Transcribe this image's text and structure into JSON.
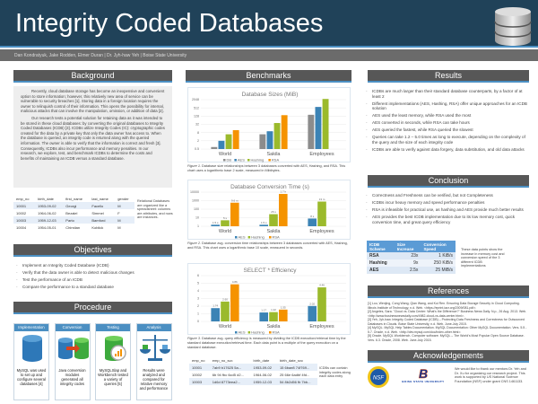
{
  "header": {
    "title": "Integrity Coded Databases",
    "authors": "Dan Kondratyuk, Jake Rodden, Elmer Duran  |  Dr. Jyh-haw Yeh | Boise State University"
  },
  "background": {
    "heading": "Background",
    "p1": "Recently, cloud database storage has become an inexpensive and convenient option to store information; however, this relatively new area of service can be vulnerable to security breaches [1]. Storing data in a foreign location requires the owner to relinquish control of their information. This opens the possibility for internal, malicious attacks that can involve the manipulation, omission, or addition of data [2].",
    "p2": "Our research tests a potential solution for retaining data as it was intended to be stored in these cloud databases: by converting the original databases to Integrity Coded Databases (ICDB) [3]. ICDBs utilize Integrity Codes (IC): cryptographic codes created for the data by a private key that only the data owner has access to. When the database is queried, an integrity code is returned along with the queried information. The owner is able to verify that the information is correct and fresh [3]. Consequently, ICDBs also incur performance and memory penalties. In our research, we explore, test, and benchmark ICDBs to determine the costs and benefits of maintaining an ICDB versus a standard database.",
    "table": {
      "headers": [
        "emp_no",
        "birth_date",
        "first_name",
        "last_name",
        "gender"
      ],
      "rows": [
        [
          "10001",
          "1953-09-02",
          "Georgi",
          "Facello",
          "M"
        ],
        [
          "10002",
          "1964-06-02",
          "Bezalel",
          "Simmel",
          "F"
        ],
        [
          "10003",
          "1959-12-03",
          "Parto",
          "Bamford",
          "M"
        ],
        [
          "10004",
          "1954-05-01",
          "Chirstian",
          "Koblick",
          "M"
        ]
      ]
    },
    "table_note": "Relational Databases are organized like a spreadsheet: columns are attributes, and rows are instances."
  },
  "objectives": {
    "heading": "Objectives",
    "items": [
      "Implement an Integrity Coded Database (ICDB)",
      "Verify that the data owner is able to detect malicious changes",
      "Test the performance of an ICDB",
      "Compare the performance to a standard database"
    ]
  },
  "procedure": {
    "heading": "Procedure",
    "steps": [
      {
        "label": "Implementation",
        "text": "MySQL was used to set up and configure several databases [4]",
        "icon": "database-icon"
      },
      {
        "label": "Conversion",
        "text": "Java conversion modules generated all integrity codes",
        "icon": "convert-databases-icon"
      },
      {
        "label": "Testing",
        "text": "MySQLSlap and Workbench tested a variety of queries [5]",
        "icon": "magnifier-chart-icon"
      },
      {
        "label": "Analysis",
        "text": "Results were analyzed and compared for relative memory and performance",
        "icon": "scales-icon"
      }
    ]
  },
  "benchmarks": {
    "heading": "Benchmarks",
    "fig1_caption_label": "Figure 1.",
    "fig1_caption": " Database size relationships between 3 databases converted with AES, Hashing, and RSA. This chart uses a logarithmic base 2 scale, measured in Mibibytes.",
    "fig2_caption_label": "Figure 2.",
    "fig2_caption": " Database avg. conversion time relationships between 3 databases converted with AES, Hashing, and RSA. This chart uses a logarithmic base 10 scale, measured in seconds.",
    "fig3_caption_label": "Figure 3.",
    "fig3_caption": " Database avg. query efficiency is measured by dividing the ICDB execution/retrieval time by the standard database execution/retrieval time. Each data point is a multiple of the query execution on a standard database.",
    "icdb_table": {
      "headers": [
        "emp_no",
        "emp_no_svc",
        "birth_date",
        "birth_date_svc"
      ],
      "rows": [
        [
          "10001",
          "7ab9 b17625 5a...",
          "1953-09-02",
          "15 6bae8 74f769..."
        ],
        [
          "10002",
          "6b 94 fbc 6cd5 d2...",
          "1964-06-02",
          "25 66e 6adbf 4fd..."
        ],
        [
          "10003",
          "1d6d 8773eea2...",
          "1959-12-03",
          "54 8b2d56 fb 7bb..."
        ]
      ]
    },
    "icdb_note": "ICDBs can contain integrity codes along each data entry"
  },
  "chart_data": [
    {
      "type": "bar",
      "title": "Database Sizes (MiB)",
      "scale": "log2",
      "categories": [
        "World",
        "Sakila",
        "Employees"
      ],
      "yticks": [
        "0.5",
        "2",
        "8",
        "32",
        "128",
        "512",
        "2048"
      ],
      "ylim": [
        0.5,
        2048
      ],
      "legend": "bottom",
      "series": [
        {
          "name": "DB",
          "color": "#8c8c8c",
          "values": [
            0.7,
            6,
            160
          ]
        },
        {
          "name": "AES",
          "color": "#3b83b5",
          "values": [
            2,
            10,
            600
          ]
        },
        {
          "name": "Hashing",
          "color": "#9bba2c",
          "values": [
            6,
            40,
            2300
          ]
        },
        {
          "name": "RSA",
          "color": "#f59300",
          "values": [
            12,
            150,
            null
          ]
        }
      ]
    },
    {
      "type": "bar",
      "title": "Database Conversion Time (s)",
      "scale": "log10",
      "categories": [
        "World",
        "Sakila",
        "Employees"
      ],
      "yticks": [
        "1",
        "10",
        "100",
        "1000",
        "10000"
      ],
      "ylim": [
        1,
        10000
      ],
      "legend": "bottom",
      "series": [
        {
          "name": "AES",
          "color": "#3b83b5",
          "values": [
            1.5,
            1.5,
            8
          ],
          "labels": [
            "1.5 s",
            "1.5 s",
            "8 s"
          ]
        },
        {
          "name": "Hashing",
          "color": "#9bba2c",
          "values": [
            5,
            26,
            780
          ],
          "labels": [
            "5 s",
            "26 s",
            "13 m"
          ]
        },
        {
          "name": "RSA",
          "color": "#f59300",
          "values": [
            576,
            6120,
            null
          ],
          "labels": [
            "9.6 m",
            "1.7 h",
            ""
          ]
        }
      ]
    },
    {
      "type": "bar",
      "title": "SELECT * Efficiency",
      "scale": "linear",
      "categories": [
        "World",
        "Sakila",
        "Employees"
      ],
      "yticks": [
        "0",
        "1",
        "2",
        "3",
        "4",
        "5",
        "6"
      ],
      "ylim": [
        0,
        6
      ],
      "legend": "bottom",
      "series": [
        {
          "name": "AES",
          "color": "#3b83b5",
          "values": [
            1.74,
            1.17,
            2.02
          ],
          "labels": [
            "1.74",
            "1.17",
            "2.02"
          ]
        },
        {
          "name": "Hashing",
          "color": "#9bba2c",
          "values": [
            2.6,
            1.22,
            4.46
          ],
          "labels": [
            "2.60",
            "1.22",
            "4.46"
          ]
        },
        {
          "name": "RSA",
          "color": "#f59300",
          "values": [
            4.86,
            1.55,
            null
          ],
          "labels": [
            "4.86",
            "1.55",
            ""
          ]
        }
      ]
    }
  ],
  "results": {
    "heading": "Results",
    "items": [
      "ICDBs are much larger than their standard database counterparts, by a factor of at least 2",
      "Different implementations (AES, Hashing, RSA) offer unique approaches for an ICDB solution",
      "AES used the least memory, while RSA used the most",
      "AES converted in seconds, while RSA can take hours",
      "AES queried the fastest, while RSA queried the slowest",
      "Queries can take 1.2 – 5.0 times as long to execute, depending on the complexity of the query and the size of each integrity code",
      "ICDBs are able to verify against data forgery, data substitution, and old data attacks"
    ]
  },
  "conclusion": {
    "heading": "Conclusion",
    "items": [
      "Correctness and Freshness can be verified, but not Completeness",
      "ICDBs incur heavy memory and speed performance penalties",
      "RSA is infeasible for practical use, as hashing and AES provide much better results",
      "AES provides the best ICDB implementation due to its low memory cost, quick conversion time, and great query efficiency"
    ],
    "table": {
      "headers": [
        "ICDB Scheme",
        "Size Increase",
        "Conversion Speed"
      ],
      "rows": [
        [
          "RSA",
          "23x",
          "1 KiB/s"
        ],
        [
          "Hashing",
          "9x",
          "250 KiB/s"
        ],
        [
          "AES",
          "2.5x",
          "25 MiB/s"
        ]
      ]
    },
    "note": "These data points show the increase in memory cost and conversion speed of the 3 different ICDB implementations"
  },
  "references": {
    "heading": "References",
    "items": [
      "[1] Lou, Wenjing, Cong Wang, Qian Wang, and Kui Ren. Ensuring Data Storage Security in Cloud Computing. Illinois Institute of Technology, n.d. Web. <https://eprint.iacr.org/2009/081.pdf>.",
      "[2] Angeles, Sara. \"Cloud vs. Data Center: What's the Difference?\" Business News Daily. N.p., 26 Aug. 2013. Web. <http://www.businessnewsdaily.com/4982-cloud-vs-data-center.html>.",
      "[3] Yeh, Jyh-haw. Integrity Coded Database (ICDB) – Protecting Data Freshness and Correctness for Outsourced Databases in Clouds. Boise State University, n.d. Web. June-July 2015.",
      "[4] MySQL. MySQL Help Tables Documentation. MySQL Documentation: Other MySQL Documentation. Vers. 5.5 - 5.7. Oracle, n.d. Web. <http://dev.mysql.com/doc/index-other.html>.",
      "[5] Oracle. MySQL Workbench. Computer software. MySQL – The World's Most Popular Open Source Database. Vers. 6.3. Oracle, 2008. Web. June-July 2015."
    ]
  },
  "acknowledgements": {
    "heading": "Acknowledgements",
    "text": "We would like to thank our mentors Dr. Yeh and Dr. Xu for organizing our research project. This work is supported by US National Science Foundation (NSF) under grant CNS 1461133.",
    "nsf_logo": "NSF",
    "bsu_logo": "BOISE STATE UNIVERSITY"
  }
}
